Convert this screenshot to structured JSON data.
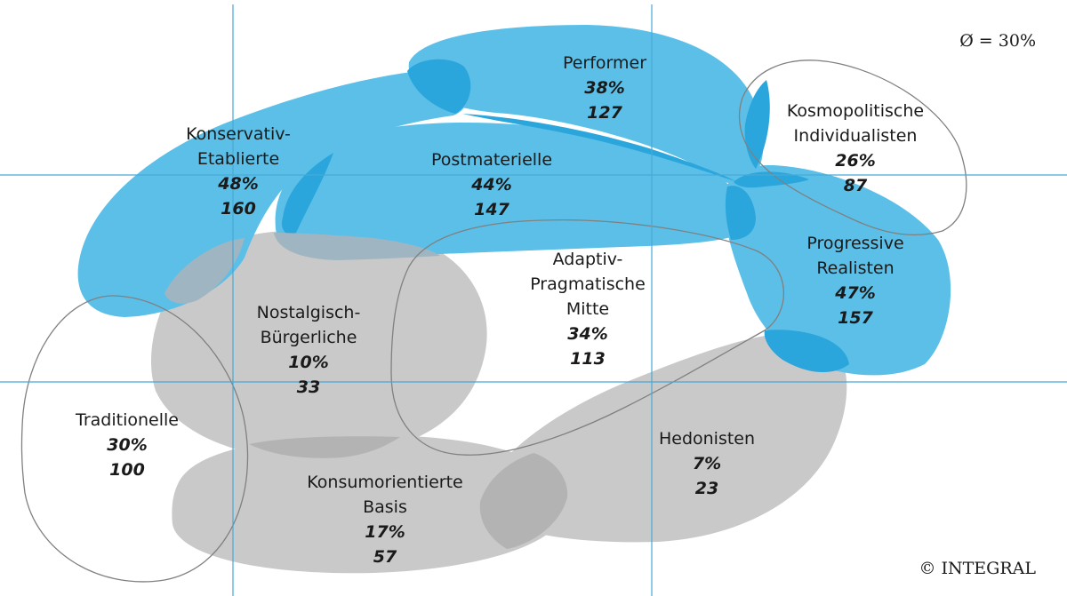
{
  "avg_label": "Ø = 30%",
  "copyright": "© INTEGRAL",
  "colors": {
    "blue_fill": "#5bbfe8",
    "blue_overlap": "#2aa6dc",
    "grey_fill": "#c9c9c9",
    "grey_overlap": "#b3b3b3",
    "outline": "#808080",
    "grid": "#48a9d6"
  },
  "milieus": {
    "konservativ": {
      "name": [
        "Konservativ-",
        "Etablierte"
      ],
      "pct": "48%",
      "count": "160"
    },
    "performer": {
      "name": [
        "Performer"
      ],
      "pct": "38%",
      "count": "127"
    },
    "postmaterielle": {
      "name": [
        "Postmaterielle"
      ],
      "pct": "44%",
      "count": "147"
    },
    "kosmopolitische": {
      "name": [
        "Kosmopolitische",
        "Individualisten"
      ],
      "pct": "26%",
      "count": "87"
    },
    "progressive": {
      "name": [
        "Progressive",
        "Realisten"
      ],
      "pct": "47%",
      "count": "157"
    },
    "adaptiv": {
      "name": [
        "Adaptiv-",
        "Pragmatische",
        "Mitte"
      ],
      "pct": "34%",
      "count": "113"
    },
    "nostalgisch": {
      "name": [
        "Nostalgisch-",
        "Bürgerliche"
      ],
      "pct": "10%",
      "count": "33"
    },
    "traditionelle": {
      "name": [
        "Traditionelle"
      ],
      "pct": "30%",
      "count": "100"
    },
    "hedonisten": {
      "name": [
        "Hedonisten"
      ],
      "pct": "7%",
      "count": "23"
    },
    "konsumorientierte": {
      "name": [
        "Konsumorientierte",
        "Basis"
      ],
      "pct": "17%",
      "count": "57"
    }
  }
}
